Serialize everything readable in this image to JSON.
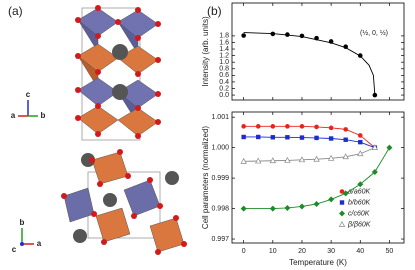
{
  "panel_labels": [
    "(a)",
    "(b)"
  ],
  "structure_axes": {
    "top": [
      "c",
      "a",
      "b"
    ],
    "bottom": [
      "b",
      "c",
      "a"
    ]
  },
  "chart_data": [
    {
      "type": "scatter",
      "ylabel": "Intensity (arb. units)",
      "annotation": "(½, 0, ½)",
      "xlim": [
        -4,
        55
      ],
      "xticks": [
        0,
        10,
        20,
        30,
        40,
        50
      ],
      "show_xtick_labels": false,
      "ylim": [
        -0.15,
        2.8
      ],
      "yticks": [
        {
          "value": 0,
          "label": "0.0"
        },
        {
          "value": 0.2,
          "label": "0.2"
        },
        {
          "value": 0.4,
          "label": "0.4"
        },
        {
          "value": 0.6,
          "label": "0.6"
        },
        {
          "value": 0.8,
          "label": "0.8"
        },
        {
          "value": 1,
          "label": "1.0"
        },
        {
          "value": 1.2,
          "label": "1.2"
        },
        {
          "value": 1.4,
          "label": "1.4"
        },
        {
          "value": 1.6,
          "label": "1.6"
        },
        {
          "value": 1.8,
          "label": "1.8"
        }
      ],
      "series": [
        {
          "color": "#000000",
          "marker": "circle",
          "line": false,
          "x": [
            0,
            10,
            15,
            20,
            25,
            30,
            35,
            40,
            45
          ],
          "values": [
            1.81,
            1.86,
            1.84,
            1.8,
            1.73,
            1.63,
            1.47,
            1.2,
            0.0
          ]
        },
        {
          "color": "#000000",
          "marker": "none",
          "line": true,
          "x": [
            0,
            10,
            20,
            30,
            35,
            40,
            43,
            44.5,
            45
          ],
          "values": [
            1.9,
            1.87,
            1.78,
            1.59,
            1.44,
            1.19,
            0.91,
            0.6,
            0.0
          ]
        }
      ]
    },
    {
      "type": "scatter",
      "xlabel": "Temperature (K)",
      "ylabel": "Cell parameters (normalized)",
      "xlim": [
        -4,
        55
      ],
      "xticks": [
        0,
        10,
        20,
        30,
        40,
        50
      ],
      "show_xtick_labels": true,
      "ylim": [
        0.99687,
        1.00117
      ],
      "yticks": [
        0.997,
        0.998,
        0.999,
        {
          "value": 1.0,
          "label": "1.000"
        },
        1.001
      ],
      "legend": "right",
      "series": [
        {
          "name": "a/a60K",
          "color": "#e8231f",
          "marker": "circle",
          "line": true,
          "x": [
            0,
            5,
            10,
            15,
            20,
            25,
            30,
            35,
            40,
            45
          ],
          "values": [
            1.0007,
            1.0007,
            1.0007,
            1.0007,
            1.0007,
            1.00068,
            1.00065,
            1.0006,
            1.0004,
            1.0
          ]
        },
        {
          "name": "b/b60K",
          "color": "#1d2bd0",
          "marker": "square",
          "line": true,
          "x": [
            0,
            5,
            10,
            15,
            20,
            25,
            30,
            35,
            40,
            45
          ],
          "values": [
            1.00035,
            1.00035,
            1.00034,
            1.00034,
            1.00033,
            1.00032,
            1.0003,
            1.00026,
            1.00018,
            1.0
          ]
        },
        {
          "name": "c/c60K",
          "color": "#1e8a2a",
          "marker": "diamond",
          "line": true,
          "x": [
            0,
            10,
            15,
            20,
            25,
            30,
            35,
            40,
            45,
            50
          ],
          "values": [
            0.998,
            0.998,
            0.99802,
            0.99807,
            0.99815,
            0.9983,
            0.9985,
            0.9988,
            0.9992,
            1.0
          ]
        },
        {
          "name": "β/β60K",
          "color": "#888888",
          "marker": "triangle",
          "line": true,
          "x": [
            0,
            5,
            10,
            15,
            20,
            25,
            30,
            35,
            40,
            45
          ],
          "values": [
            0.99955,
            0.99956,
            0.99957,
            0.99958,
            0.9996,
            0.99962,
            0.99965,
            0.9997,
            0.9998,
            1.0
          ]
        }
      ]
    }
  ]
}
